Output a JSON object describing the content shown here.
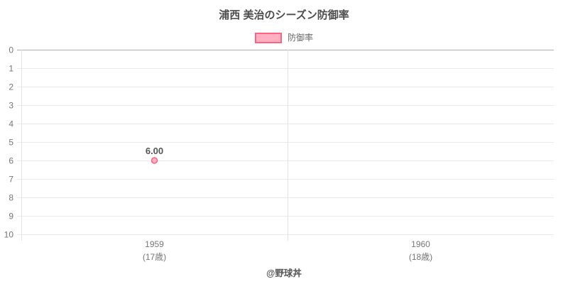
{
  "footer": {
    "credit": "@野球丼"
  },
  "chart_data": {
    "type": "line",
    "title": "浦西 美治のシーズン防御率",
    "categories": [
      "1959",
      "1960"
    ],
    "category_sublabels": [
      "(17歳)",
      "(18歳)"
    ],
    "series": [
      {
        "name": "防御率",
        "values": [
          6.0,
          null
        ],
        "point_labels": [
          "6.00",
          null
        ]
      }
    ],
    "xlabel": "",
    "ylabel": "",
    "ylim": [
      0,
      10
    ],
    "y_ticks": [
      0,
      1,
      2,
      3,
      4,
      5,
      6,
      7,
      8,
      9,
      10
    ],
    "y_axis_direction": "inverted (0 at top, 10 at bottom)",
    "grid": true,
    "legend_position": "top",
    "point_color": {
      "fill": "#ffb1c1",
      "border": "#ff6384"
    },
    "grid_color": "#eaeaea",
    "zero_line_color": "#adadad",
    "axis_line_color": "#e3e3e3",
    "text_colors": {
      "title": "#4d4d4d",
      "ticks": "#767676",
      "legend": "#666666",
      "point_label": "#555555",
      "footer": "#555555"
    }
  }
}
